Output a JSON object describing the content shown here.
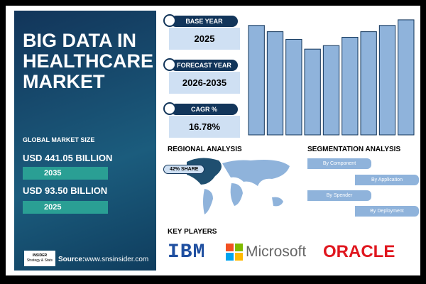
{
  "title_lines": [
    "BIG DATA IN",
    "HEALTHCARE",
    "MARKET"
  ],
  "market_size": {
    "label": "GLOBAL MARKET SIZE",
    "items": [
      {
        "value": "USD 441.05 BILLION",
        "year": "2035"
      },
      {
        "value": "USD 93.50 BILLION",
        "year": "2025"
      }
    ]
  },
  "logo": [
    "INSIDER",
    "Strategy & Stats"
  ],
  "source": {
    "label": "Source:",
    "url": "www.snsinsider.com"
  },
  "cards": [
    {
      "label": "BASE YEAR",
      "value": "2025"
    },
    {
      "label": "FORECAST YEAR",
      "value": "2026-2035"
    },
    {
      "label": "CAGR %",
      "value": "16.78%"
    }
  ],
  "chart_data": {
    "type": "bar",
    "values": [
      157,
      148,
      137,
      123,
      128,
      140,
      148,
      157,
      165
    ],
    "ylim": [
      0,
      170
    ],
    "color": "#8fb3db"
  },
  "regional": {
    "title": "REGIONAL ANALYSIS",
    "share": "42% SHARE"
  },
  "segmentation": {
    "title": "SEGMENTATION ANALYSIS",
    "items": [
      "By Component",
      "By Application",
      "By Spender",
      "By Deployment"
    ]
  },
  "key_players": {
    "title": "KEY PLAYERS",
    "companies": [
      "IBM",
      "Microsoft",
      "ORACLE"
    ]
  }
}
